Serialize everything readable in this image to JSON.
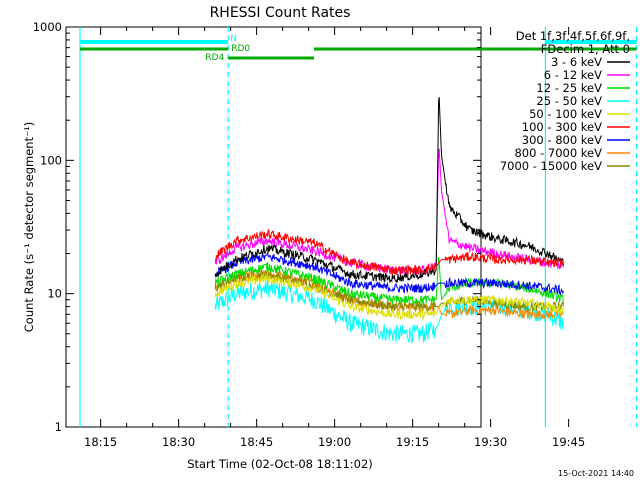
{
  "chart_data": {
    "type": "line",
    "title": "RHESSI Count Rates",
    "xlabel": "Start Time (02-Oct-08 18:11:02)",
    "ylabel": "Count Rate (s⁻¹ detector segment⁻¹)",
    "x_scale": "time",
    "x_range_minutes": [
      18.2,
      18.82
    ],
    "xlim": [
      "18:11:02",
      "19:48:00"
    ],
    "x_ticks": [
      {
        "label": "18:15",
        "minute": 15
      },
      {
        "label": "18:30",
        "minute": 30
      },
      {
        "label": "18:45",
        "minute": 45
      },
      {
        "label": "19:00",
        "minute": 60
      },
      {
        "label": "19:15",
        "minute": 75
      },
      {
        "label": "19:30",
        "minute": 90
      },
      {
        "label": "19:45",
        "minute": 105
      }
    ],
    "y_scale": "log",
    "ylim": [
      1,
      1000
    ],
    "y_ticks": [
      "1",
      "10",
      "100",
      "1000"
    ],
    "legend": {
      "placement": "right",
      "header_line1": "Det 1f,3f,4f,5f,6f,9f,",
      "header_line2": "FDecim 1, Att 0",
      "entries": [
        {
          "label": "3 - 6 keV",
          "color": "#000000"
        },
        {
          "label": "6 - 12 keV",
          "color": "#ff00ff"
        },
        {
          "label": "12 - 25 keV",
          "color": "#00dd00"
        },
        {
          "label": "25 - 50 keV",
          "color": "#00ffff"
        },
        {
          "label": "50 - 100 keV",
          "color": "#dddd00"
        },
        {
          "label": "100 - 300 keV",
          "color": "#ff0000"
        },
        {
          "label": "300 - 800 keV",
          "color": "#0000ff"
        },
        {
          "label": "800 - 7000 keV",
          "color": "#ff8800"
        },
        {
          "label": "7000 - 15000 keV",
          "color": "#888800"
        }
      ]
    },
    "series": [
      {
        "name": "3 - 6 keV",
        "color": "#000000",
        "x_minutes": [
          26,
          30,
          36,
          45,
          52,
          60,
          66,
          68.5,
          69,
          69.5,
          71,
          75,
          80,
          86,
          90,
          93
        ],
        "values": [
          14,
          18,
          22,
          18,
          14,
          13,
          14,
          15,
          360,
          110,
          45,
          30,
          26,
          23,
          20,
          17
        ]
      },
      {
        "name": "6 - 12 keV",
        "color": "#ff00ff",
        "x_minutes": [
          26,
          30,
          36,
          45,
          52,
          60,
          66,
          68.5,
          69,
          69.5,
          71,
          75,
          80,
          86,
          90,
          93
        ],
        "values": [
          17,
          22,
          25,
          21,
          17,
          15,
          15,
          16,
          140,
          60,
          25,
          22,
          20,
          18,
          17,
          16
        ]
      },
      {
        "name": "12 - 25 keV",
        "color": "#00dd00",
        "x_minutes": [
          26,
          30,
          36,
          45,
          52,
          60,
          66,
          68.5,
          69,
          69.5,
          71,
          75,
          80,
          86,
          90,
          93
        ],
        "values": [
          12,
          14,
          16,
          13,
          10,
          9,
          9,
          9,
          20,
          9,
          11,
          12,
          12,
          11,
          10,
          9
        ]
      },
      {
        "name": "25 - 50 keV",
        "color": "#00ffff",
        "x_minutes": [
          26,
          30,
          36,
          45,
          52,
          60,
          66,
          68.5,
          69,
          69.5,
          71,
          75,
          80,
          86,
          90,
          93
        ],
        "values": [
          8,
          10,
          11,
          9,
          6,
          5,
          5,
          5.5,
          6,
          7,
          8,
          8,
          8,
          7.5,
          7,
          6
        ]
      },
      {
        "name": "50 - 100 keV",
        "color": "#dddd00",
        "x_minutes": [
          26,
          30,
          36,
          45,
          52,
          60,
          66,
          68.5,
          69,
          69.5,
          71,
          75,
          80,
          86,
          90,
          93
        ],
        "values": [
          10,
          12,
          13,
          11,
          8,
          7,
          7,
          7,
          8,
          8,
          9,
          9,
          9,
          8.5,
          8,
          7.5
        ]
      },
      {
        "name": "100 - 300 keV",
        "color": "#ff0000",
        "x_minutes": [
          26,
          30,
          36,
          45,
          52,
          60,
          66,
          68.5,
          69,
          69.5,
          71,
          75,
          80,
          86,
          90,
          93
        ],
        "values": [
          19,
          25,
          28,
          24,
          17,
          15,
          15,
          16,
          17,
          18,
          18,
          19,
          18,
          18,
          17,
          17
        ]
      },
      {
        "name": "300 - 800 keV",
        "color": "#0000ff",
        "x_minutes": [
          26,
          30,
          36,
          45,
          52,
          60,
          66,
          68.5,
          69,
          69.5,
          71,
          75,
          80,
          86,
          90,
          93
        ],
        "values": [
          14,
          17,
          19,
          16,
          12,
          11,
          11,
          11.5,
          12,
          12,
          12,
          12,
          12,
          11.5,
          11,
          10.5
        ]
      },
      {
        "name": "800 - 7000 keV",
        "color": "#ff8800",
        "x_minutes": [
          26,
          30,
          36,
          45,
          52,
          60,
          66,
          68.5,
          69,
          69.5,
          71,
          75,
          80,
          86,
          90,
          93
        ],
        "values": [
          11,
          13,
          14,
          12,
          9,
          8,
          8,
          8,
          8,
          7,
          7,
          7.5,
          7.5,
          7,
          7,
          7
        ]
      },
      {
        "name": "7000 - 15000 keV",
        "color": "#888800",
        "x_minutes": [
          26,
          30,
          36,
          45,
          52,
          60,
          66,
          68.5,
          69,
          69.5,
          71,
          75,
          80,
          86,
          90,
          93
        ],
        "values": [
          11,
          13,
          14,
          11.5,
          9,
          8,
          8,
          8,
          8,
          8.5,
          8.5,
          9,
          8.5,
          8,
          8,
          8
        ]
      }
    ],
    "vertical_markers": [
      {
        "minute": 0,
        "style": "solid",
        "color": "#00ffff"
      },
      {
        "minute": 28.5,
        "style": "dashed",
        "color": "#00ffff"
      },
      {
        "minute": 89.5,
        "style": "solid",
        "color": "#00ffff"
      },
      {
        "minute": 107,
        "style": "dashed",
        "color": "#00ffff"
      }
    ],
    "flag_bars": [
      {
        "label": "N",
        "color": "#00ffff",
        "segments": [
          [
            0,
            28.5
          ],
          [
            89.5,
            107
          ]
        ]
      },
      {
        "label": "RD0",
        "color": "#00aa00",
        "segments": [
          [
            0,
            28.5
          ],
          [
            45,
            107
          ]
        ]
      },
      {
        "label": "RD4",
        "color": "#00aa00",
        "segments": [
          [
            28.5,
            45
          ]
        ]
      }
    ],
    "footer_date": "15-Oct-2021 14:40",
    "grid": false
  }
}
